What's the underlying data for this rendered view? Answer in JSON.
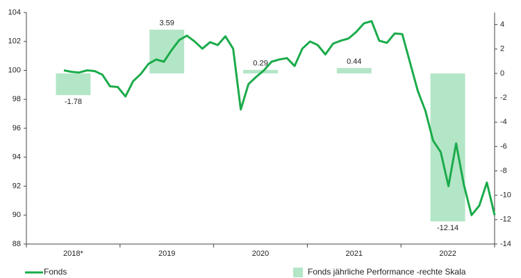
{
  "chart_data": {
    "type": "bar_line",
    "categories": [
      "2018*",
      "2019",
      "2020",
      "2021",
      "2022"
    ],
    "bar_series": {
      "name": "Fonds jährliche Performance -rechte Skala",
      "color": "#b3e6c7",
      "axis": "y2",
      "values": [
        -1.78,
        3.59,
        0.29,
        0.44,
        -12.14
      ]
    },
    "line_series": {
      "name": "Fonds",
      "color": "#1aab4a",
      "values": [
        100.0,
        99.9,
        99.85,
        100.0,
        99.95,
        99.7,
        98.9,
        98.85,
        98.2,
        99.25,
        99.75,
        100.45,
        100.75,
        100.6,
        101.4,
        102.1,
        102.4,
        102.0,
        101.5,
        101.95,
        101.75,
        102.35,
        101.5,
        97.3,
        99.05,
        99.55,
        100.0,
        100.6,
        100.75,
        100.85,
        100.3,
        101.5,
        102.0,
        101.75,
        101.1,
        101.85,
        102.05,
        102.2,
        102.65,
        103.25,
        103.4,
        102.05,
        101.9,
        102.55,
        102.5,
        100.55,
        98.6,
        97.2,
        95.15,
        94.35,
        92.0,
        94.95,
        92.1,
        90.0,
        90.65,
        92.25,
        90.0
      ]
    },
    "ylim": [
      88,
      104
    ],
    "yticks": [
      88,
      90,
      92,
      94,
      96,
      98,
      100,
      102,
      104
    ],
    "y2lim": [
      -14,
      5
    ],
    "y2ticks": [
      -14,
      -12,
      -10,
      -8,
      -6,
      -4,
      -2,
      0,
      2,
      4
    ]
  }
}
